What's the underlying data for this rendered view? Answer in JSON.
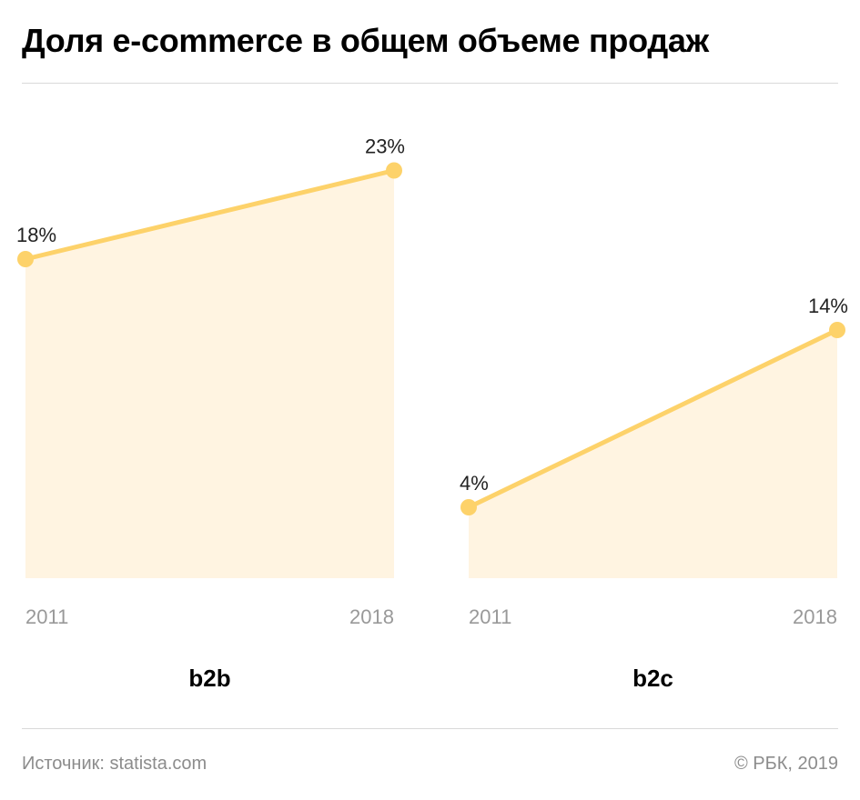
{
  "title": "Доля e-commerce в общем объеме продаж",
  "footer": {
    "source": "Источник: statista.com",
    "copyright": "© РБК, 2019"
  },
  "colors": {
    "line": "#fdd26a",
    "fill": "#fff4e1",
    "axis_text": "#999999",
    "value_text": "#222222"
  },
  "chart_data": [
    {
      "type": "area",
      "name": "b2b",
      "x": [
        "2011",
        "2018"
      ],
      "values": [
        18,
        23
      ],
      "labels": [
        "18%",
        "23%"
      ],
      "xlabel": "b2b",
      "ylabel": "",
      "ylim": [
        0,
        25
      ],
      "grid": false
    },
    {
      "type": "area",
      "name": "b2c",
      "x": [
        "2011",
        "2018"
      ],
      "values": [
        4,
        14
      ],
      "labels": [
        "4%",
        "14%"
      ],
      "xlabel": "b2c",
      "ylabel": "",
      "ylim": [
        0,
        25
      ],
      "grid": false
    }
  ]
}
